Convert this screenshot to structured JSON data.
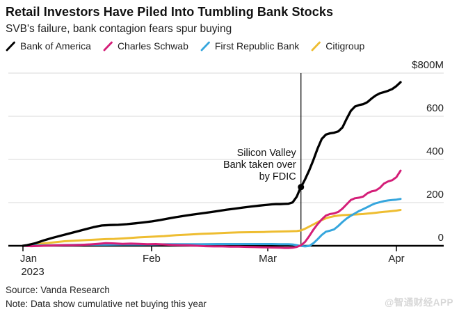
{
  "footer": {
    "source": "Source: Vanda Research",
    "note": "Note: Data show cumulative net buying this year",
    "watermark": "@智通财经APP"
  },
  "chart_data": {
    "type": "line",
    "title": "Retail Investors Have Piled Into Tumbling Bank Stocks",
    "subtitle": "SVB's failure, bank contagion fears spur buying",
    "unit": "USD millions, cumulative net retail buying",
    "grid": "horizontal",
    "legend_position": "top",
    "colors": {
      "grid": "#d9d9d9",
      "axis": "#000000",
      "text": "#222222",
      "annotation_line": "#000000"
    },
    "y_axis": {
      "ticks": [
        800,
        600,
        400,
        200,
        0
      ],
      "tick_labels": [
        "$800M",
        "600",
        "400",
        "200",
        "0"
      ],
      "ylim": [
        0,
        800
      ],
      "side": "right"
    },
    "x_axis": {
      "tick_labels": [
        "Jan",
        "Feb",
        "Mar",
        "Apr"
      ],
      "tick_days": [
        0,
        31,
        59,
        90
      ],
      "year_label": "2023",
      "domain_days": [
        0,
        91
      ]
    },
    "annotation": {
      "text_lines": [
        "Silicon Valley",
        "Bank taken over",
        "by FDIC"
      ],
      "event_day": 67,
      "marker_series": "Bank of America",
      "marker_value": 272
    },
    "series": [
      {
        "name": "Bank of America",
        "color": "#000000",
        "points": [
          [
            0,
            0
          ],
          [
            1,
            3
          ],
          [
            3,
            12
          ],
          [
            5,
            25
          ],
          [
            7,
            36
          ],
          [
            9,
            46
          ],
          [
            11,
            56
          ],
          [
            13,
            66
          ],
          [
            15,
            76
          ],
          [
            17,
            86
          ],
          [
            19,
            94
          ],
          [
            21,
            96
          ],
          [
            23,
            97
          ],
          [
            25,
            100
          ],
          [
            27,
            104
          ],
          [
            29,
            108
          ],
          [
            31,
            113
          ],
          [
            33,
            119
          ],
          [
            35,
            126
          ],
          [
            37,
            133
          ],
          [
            39,
            139
          ],
          [
            41,
            145
          ],
          [
            43,
            150
          ],
          [
            45,
            155
          ],
          [
            47,
            161
          ],
          [
            49,
            167
          ],
          [
            51,
            172
          ],
          [
            53,
            177
          ],
          [
            55,
            182
          ],
          [
            57,
            186
          ],
          [
            59,
            190
          ],
          [
            60,
            192
          ],
          [
            61,
            193
          ],
          [
            62,
            193
          ],
          [
            63,
            194
          ],
          [
            64,
            195
          ],
          [
            65,
            201
          ],
          [
            66,
            228
          ],
          [
            66.8,
            265
          ],
          [
            67,
            272
          ],
          [
            67.5,
            290
          ],
          [
            68,
            308
          ],
          [
            69,
            350
          ],
          [
            70,
            398
          ],
          [
            71,
            450
          ],
          [
            72,
            495
          ],
          [
            73,
            515
          ],
          [
            74,
            521
          ],
          [
            75,
            524
          ],
          [
            76,
            530
          ],
          [
            77,
            548
          ],
          [
            78,
            588
          ],
          [
            79,
            625
          ],
          [
            80,
            645
          ],
          [
            81,
            652
          ],
          [
            82,
            656
          ],
          [
            83,
            665
          ],
          [
            84,
            682
          ],
          [
            85,
            696
          ],
          [
            86,
            706
          ],
          [
            87,
            712
          ],
          [
            88,
            718
          ],
          [
            89,
            726
          ],
          [
            90,
            740
          ],
          [
            91,
            758
          ]
        ]
      },
      {
        "name": "Charles Schwab",
        "color": "#d41e78",
        "points": [
          [
            0,
            0
          ],
          [
            2,
            -2
          ],
          [
            4,
            -1
          ],
          [
            6,
            1
          ],
          [
            8,
            2
          ],
          [
            10,
            3
          ],
          [
            12,
            3
          ],
          [
            14,
            4
          ],
          [
            16,
            6
          ],
          [
            18,
            9
          ],
          [
            20,
            12
          ],
          [
            22,
            11
          ],
          [
            24,
            9
          ],
          [
            26,
            10
          ],
          [
            28,
            9
          ],
          [
            30,
            7
          ],
          [
            32,
            8
          ],
          [
            34,
            6
          ],
          [
            36,
            4
          ],
          [
            38,
            3
          ],
          [
            40,
            2
          ],
          [
            42,
            0
          ],
          [
            44,
            -2
          ],
          [
            46,
            -3
          ],
          [
            48,
            -3
          ],
          [
            50,
            -4
          ],
          [
            52,
            -4
          ],
          [
            54,
            -5
          ],
          [
            56,
            -6
          ],
          [
            58,
            -7
          ],
          [
            60,
            -8
          ],
          [
            62,
            -9
          ],
          [
            63,
            -10
          ],
          [
            64,
            -10
          ],
          [
            65,
            -9
          ],
          [
            66,
            -5
          ],
          [
            67,
            2
          ],
          [
            68,
            18
          ],
          [
            69,
            45
          ],
          [
            70,
            75
          ],
          [
            71,
            100
          ],
          [
            72,
            122
          ],
          [
            73,
            140
          ],
          [
            74,
            147
          ],
          [
            75,
            150
          ],
          [
            76,
            157
          ],
          [
            77,
            172
          ],
          [
            78,
            192
          ],
          [
            79,
            212
          ],
          [
            80,
            220
          ],
          [
            81,
            223
          ],
          [
            82,
            228
          ],
          [
            83,
            243
          ],
          [
            84,
            252
          ],
          [
            85,
            256
          ],
          [
            86,
            268
          ],
          [
            87,
            288
          ],
          [
            88,
            298
          ],
          [
            89,
            304
          ],
          [
            90,
            318
          ],
          [
            91,
            348
          ]
        ]
      },
      {
        "name": "First Republic Bank",
        "color": "#36a6dd",
        "points": [
          [
            0,
            0
          ],
          [
            2,
            1
          ],
          [
            5,
            2
          ],
          [
            8,
            3
          ],
          [
            12,
            4
          ],
          [
            16,
            5
          ],
          [
            20,
            5
          ],
          [
            24,
            6
          ],
          [
            28,
            6
          ],
          [
            31,
            6
          ],
          [
            35,
            7
          ],
          [
            39,
            7
          ],
          [
            43,
            7
          ],
          [
            47,
            8
          ],
          [
            51,
            8
          ],
          [
            55,
            8
          ],
          [
            58,
            8
          ],
          [
            60,
            8
          ],
          [
            62,
            7
          ],
          [
            64,
            7
          ],
          [
            65,
            6
          ],
          [
            66,
            3
          ],
          [
            67,
            -1
          ],
          [
            68,
            -3
          ],
          [
            69,
            -1
          ],
          [
            70,
            12
          ],
          [
            71,
            30
          ],
          [
            72,
            50
          ],
          [
            73,
            65
          ],
          [
            74,
            70
          ],
          [
            75,
            76
          ],
          [
            76,
            92
          ],
          [
            77,
            110
          ],
          [
            78,
            126
          ],
          [
            79,
            139
          ],
          [
            80,
            150
          ],
          [
            81,
            161
          ],
          [
            82,
            170
          ],
          [
            83,
            179
          ],
          [
            84,
            189
          ],
          [
            85,
            197
          ],
          [
            86,
            202
          ],
          [
            87,
            207
          ],
          [
            88,
            210
          ],
          [
            89,
            212
          ],
          [
            90,
            214
          ],
          [
            91,
            217
          ]
        ]
      },
      {
        "name": "Citigroup",
        "color": "#eebd31",
        "points": [
          [
            0,
            0
          ],
          [
            2,
            4
          ],
          [
            4,
            9
          ],
          [
            6,
            13
          ],
          [
            8,
            17
          ],
          [
            10,
            21
          ],
          [
            12,
            23
          ],
          [
            14,
            25
          ],
          [
            16,
            27
          ],
          [
            18,
            29
          ],
          [
            20,
            31
          ],
          [
            22,
            32
          ],
          [
            24,
            34
          ],
          [
            26,
            36
          ],
          [
            28,
            39
          ],
          [
            31,
            42
          ],
          [
            34,
            45
          ],
          [
            37,
            49
          ],
          [
            40,
            52
          ],
          [
            43,
            55
          ],
          [
            46,
            57
          ],
          [
            49,
            60
          ],
          [
            52,
            62
          ],
          [
            55,
            63
          ],
          [
            58,
            64
          ],
          [
            60,
            65
          ],
          [
            62,
            66
          ],
          [
            64,
            67
          ],
          [
            66,
            68
          ],
          [
            67,
            71
          ],
          [
            68,
            79
          ],
          [
            69,
            89
          ],
          [
            70,
            99
          ],
          [
            71,
            109
          ],
          [
            72,
            119
          ],
          [
            73,
            127
          ],
          [
            74,
            133
          ],
          [
            75,
            137
          ],
          [
            76,
            140
          ],
          [
            77,
            142
          ],
          [
            78,
            143
          ],
          [
            79,
            144
          ],
          [
            80,
            145
          ],
          [
            81,
            146
          ],
          [
            82,
            147
          ],
          [
            83,
            149
          ],
          [
            84,
            151
          ],
          [
            85,
            153
          ],
          [
            86,
            155
          ],
          [
            87,
            157
          ],
          [
            88,
            159
          ],
          [
            89,
            161
          ],
          [
            90,
            163
          ],
          [
            91,
            166
          ]
        ]
      }
    ]
  }
}
